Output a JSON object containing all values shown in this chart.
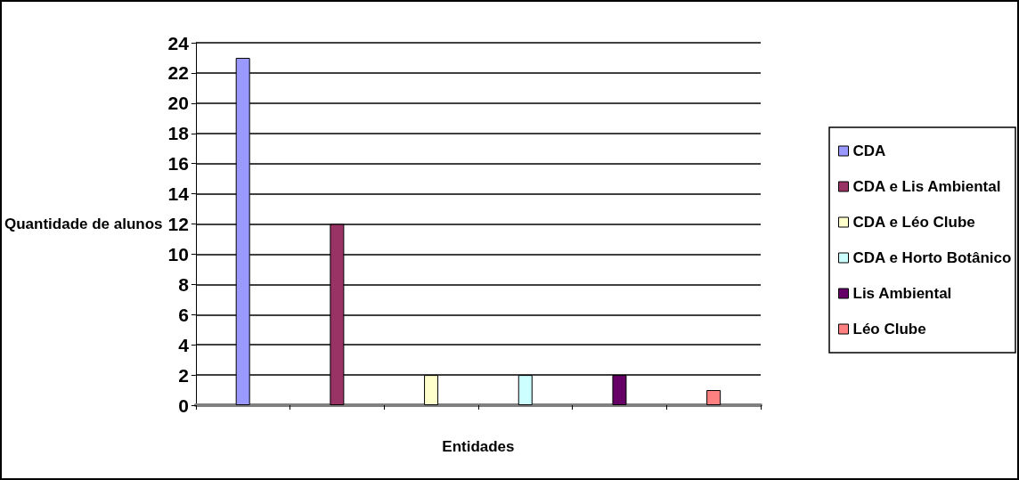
{
  "chart_data": {
    "type": "bar",
    "xlabel": "Entidades",
    "ylabel": "Quantidade de alunos",
    "categories": [
      null,
      null,
      null,
      null,
      null,
      null
    ],
    "series": [
      {
        "name": "CDA",
        "color": "#9999ff",
        "values": [
          23,
          null,
          null,
          null,
          null,
          null
        ]
      },
      {
        "name": "CDA e Lis Ambiental",
        "color": "#993366",
        "values": [
          null,
          12,
          null,
          null,
          null,
          null
        ]
      },
      {
        "name": "CDA e Léo Clube",
        "color": "#ffffcc",
        "values": [
          null,
          null,
          2,
          null,
          null,
          null
        ]
      },
      {
        "name": "CDA e Horto Botânico",
        "color": "#ccffff",
        "values": [
          null,
          null,
          null,
          2,
          null,
          null
        ]
      },
      {
        "name": "Lis Ambiental",
        "color": "#660066",
        "values": [
          null,
          null,
          null,
          null,
          2,
          null
        ]
      },
      {
        "name": "Léo Clube",
        "color": "#ff8080",
        "values": [
          null,
          null,
          null,
          null,
          null,
          1
        ]
      }
    ],
    "ylim": [
      0,
      24
    ],
    "yticks": [
      0,
      2,
      4,
      6,
      8,
      10,
      12,
      14,
      16,
      18,
      20,
      22,
      24
    ],
    "grid": "y",
    "legend": "right"
  }
}
